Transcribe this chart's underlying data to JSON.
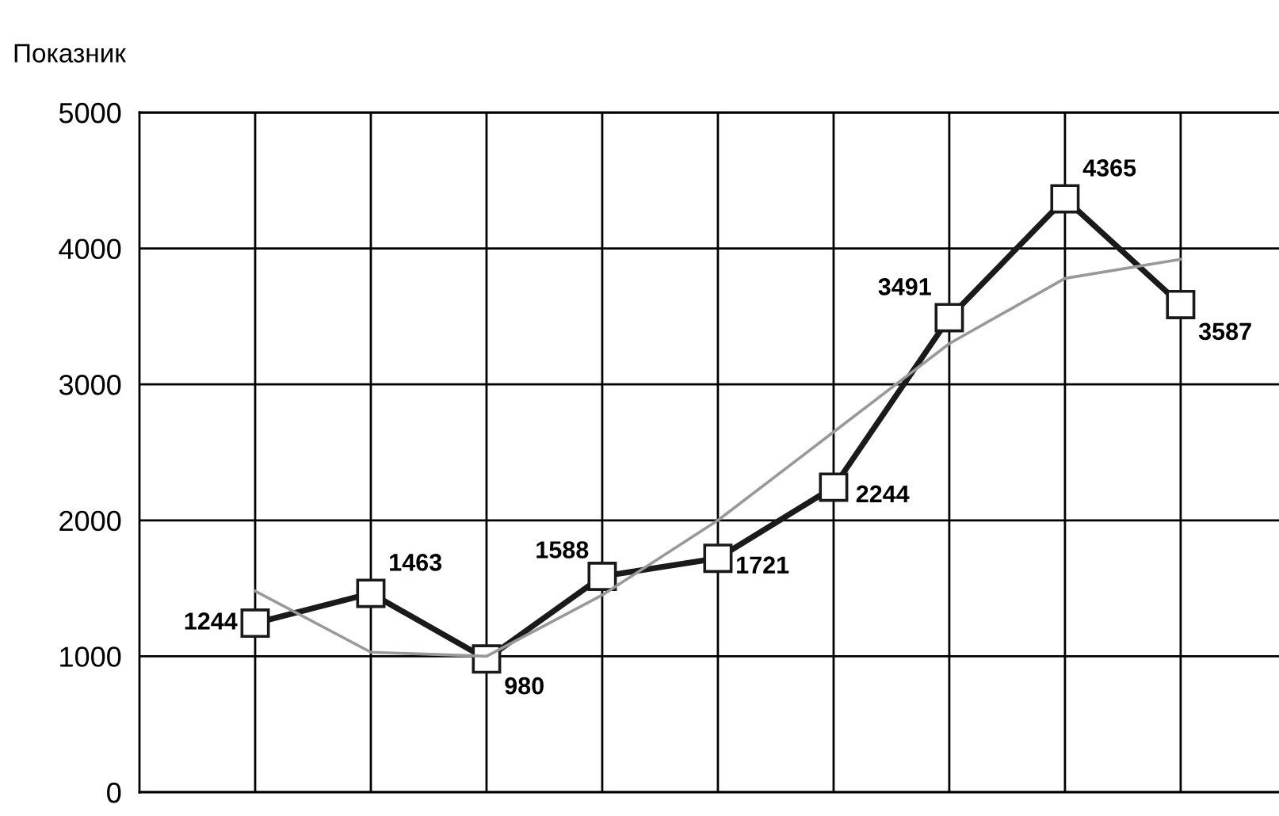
{
  "chart_data": {
    "type": "line",
    "ylabel": "Показник",
    "categories": [
      null,
      null,
      null,
      null,
      null,
      null,
      null,
      null,
      null
    ],
    "series": [
      {
        "color": "#1a1a1a",
        "values": [
          1244,
          1463,
          980,
          1588,
          1721,
          2244,
          3491,
          4365,
          3587
        ],
        "marker": "square",
        "data_labels": true
      },
      {
        "color": "#999999",
        "values": [
          1480,
          1030,
          1000,
          1450,
          2000,
          2650,
          3300,
          3780,
          3920
        ],
        "marker": "none"
      }
    ],
    "ylim": [
      0,
      5000
    ],
    "yticks": [
      0,
      1000,
      2000,
      3000,
      4000,
      5000
    ],
    "grid": true,
    "legend": false,
    "tick_labels": "y",
    "line_style": "solid"
  }
}
